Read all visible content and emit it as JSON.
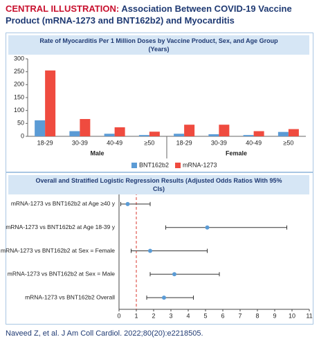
{
  "header": {
    "label": "CENTRAL ILLUSTRATION:",
    "title": "Association Between COVID-19 Vaccine Product (mRNA-1273 and BNT162b2) and Myocarditis"
  },
  "chart_data": [
    {
      "type": "bar",
      "title": "Rate of Myocarditis Per 1 Million Doses by Vaccine Product, Sex, and Age Group (Years)",
      "categories": [
        "18-29",
        "30-39",
        "40-49",
        "≥50",
        "18-29",
        "30-39",
        "40-49",
        "≥50"
      ],
      "groups": [
        "Male",
        "Female"
      ],
      "series": [
        {
          "name": "BNT162b2",
          "color": "#5b9bd5",
          "values": [
            62,
            20,
            10,
            5,
            10,
            8,
            5,
            17
          ]
        },
        {
          "name": "mRNA-1273",
          "color": "#ef4b3f",
          "values": [
            255,
            67,
            35,
            18,
            45,
            45,
            20,
            28
          ]
        }
      ],
      "ylim": [
        0,
        300
      ],
      "yticks": [
        0,
        50,
        100,
        150,
        200,
        250,
        300
      ],
      "grid": false,
      "legend": "bottom"
    },
    {
      "type": "forest",
      "title": "Overall and Stratified Logistic Regression Results (Adjusted Odds Ratios With 95% CIs)",
      "categories": [
        "mRNA-1273 vs BNT162b2 at Age ≥40 y",
        "mRNA-1273 vs BNT162b2 at Age 18-39 y",
        "mRNA-1273 vs BNT162b2 at Sex = Female",
        "mRNA-1273 vs BNT162b2 at Sex = Male",
        "mRNA-1273 vs BNT162b2 Overall"
      ],
      "values": [
        0.5,
        5.1,
        1.8,
        3.2,
        2.6
      ],
      "lower": [
        0.1,
        2.7,
        0.7,
        1.8,
        1.6
      ],
      "upper": [
        1.8,
        9.7,
        5.1,
        5.8,
        4.3
      ],
      "color": "#5b9bd5",
      "reference": 1,
      "reference_color": "#d9342b",
      "xlim": [
        0,
        11
      ],
      "xticks": [
        0,
        1,
        2,
        3,
        4,
        5,
        6,
        7,
        8,
        9,
        10,
        11
      ]
    }
  ],
  "footer": "Naveed Z, et al. J Am Coll Cardiol. 2022;80(20):e2218505."
}
